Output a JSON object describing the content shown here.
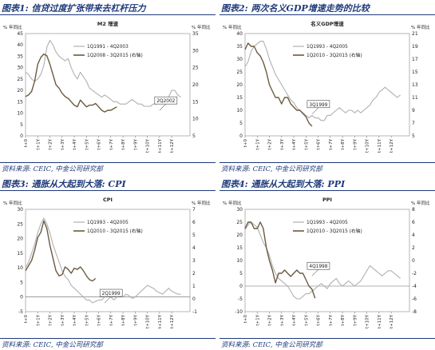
{
  "charts": [
    {
      "caption": "图表1: 信贷过度扩张带来去杠杆压力",
      "source": "资料来源: CEIC, 中金公司研究部",
      "chart_data": {
        "type": "line",
        "title": "M2 增速",
        "ylabel_left": "% 年同比",
        "ylabel_right": "% 年同比",
        "ylim_left": [
          0,
          45
        ],
        "yticks_left": [
          0,
          5,
          10,
          15,
          20,
          25,
          30,
          35,
          40,
          45
        ],
        "ylim_right": [
          5,
          35
        ],
        "yticks_right": [
          5,
          10,
          15,
          20,
          25,
          30,
          35
        ],
        "x_ticks": [
          "t+0",
          "t+1Y",
          "t+2Y",
          "t+3Y",
          "t+4Y",
          "t+5Y",
          "t+6Y",
          "t+7Y",
          "t+8Y",
          "t+9Y",
          "t+10Y",
          "t+11Y",
          "t+12Y"
        ],
        "x_range": [
          0,
          13.5
        ],
        "legend_position": "top-center",
        "annotation": {
          "label": "2Q2002",
          "x": 11.0,
          "y": 11.2
        },
        "series": [
          {
            "name": "1Q1991 - 4Q2003",
            "axis": "left",
            "color": "#b0b0b0",
            "x": [
              0,
              0.25,
              0.5,
              0.75,
              1.0,
              1.25,
              1.5,
              1.75,
              2.0,
              2.25,
              2.5,
              2.75,
              3.0,
              3.25,
              3.5,
              3.75,
              4.0,
              4.25,
              4.5,
              4.75,
              5.0,
              5.25,
              5.5,
              5.75,
              6.0,
              6.25,
              6.5,
              6.75,
              7.0,
              7.25,
              7.5,
              7.75,
              8.0,
              8.25,
              8.5,
              8.75,
              9.0,
              9.25,
              9.5,
              9.75,
              10.0,
              10.25,
              10.5,
              10.75,
              11.0,
              11.25,
              11.5,
              11.75,
              12.0,
              12.25,
              12.5,
              12.75
            ],
            "y": [
              28,
              27,
              25,
              24,
              25,
              27,
              31,
              39,
              42,
              40,
              37,
              35,
              34,
              33,
              34,
              30,
              27,
              25,
              28,
              26,
              24,
              21,
              20,
              19,
              18,
              17,
              18,
              17,
              16,
              15,
              15,
              14,
              14,
              14,
              15,
              16,
              15,
              14,
              14,
              13,
              13,
              13,
              14,
              14,
              15,
              16,
              15,
              17,
              20,
              20,
              18,
              17
            ]
          },
          {
            "name": "1Q2008 - 3Q2015 (右轴)",
            "axis": "right",
            "color": "#6b5a3f",
            "x": [
              0,
              0.25,
              0.5,
              0.75,
              1.0,
              1.25,
              1.5,
              1.75,
              2.0,
              2.25,
              2.5,
              2.75,
              3.0,
              3.25,
              3.5,
              3.75,
              4.0,
              4.25,
              4.5,
              4.75,
              5.0,
              5.25,
              5.5,
              5.75,
              6.0,
              6.25,
              6.5,
              6.75,
              7.0,
              7.25,
              7.5
            ],
            "y": [
              16.5,
              17,
              18,
              21,
              26,
              28,
              29,
              28.5,
              26,
              23,
              20,
              19,
              17.5,
              16.5,
              16,
              15,
              14,
              13.5,
              15.5,
              14.5,
              13.5,
              14,
              14,
              14.5,
              13.5,
              12.5,
              12,
              12.5,
              12.5,
              13,
              13.5
            ]
          }
        ]
      }
    },
    {
      "caption": "图表2: 两次名义GDP增速走势的比较",
      "source": "资料来源: CEIC, 中金公司研究部",
      "chart_data": {
        "type": "line",
        "title": "名义GDP增速",
        "ylabel_left": "% 年同比",
        "ylabel_right": "% 年同比",
        "ylim_left": [
          0,
          40
        ],
        "yticks_left": [
          0,
          5,
          10,
          15,
          20,
          25,
          30,
          35,
          40
        ],
        "ylim_right": [
          5,
          21
        ],
        "yticks_right": [
          5,
          7,
          9,
          11,
          13,
          15,
          17,
          19,
          21
        ],
        "x_ticks": [
          "t+0",
          "t+1Y",
          "t+2Y",
          "t+3Y",
          "t+4Y",
          "t+5Y",
          "t+6Y",
          "t+7Y",
          "t+8Y",
          "t+9Y",
          "t+10Y",
          "t+11Y",
          "t+12Y"
        ],
        "x_range": [
          0,
          13.5
        ],
        "legend_position": "top-center",
        "annotation": {
          "label": "3Q1999",
          "x": 5.5,
          "y": 8.5
        },
        "series": [
          {
            "name": "1Q1993 - 4Q2005",
            "axis": "left",
            "color": "#b0b0b0",
            "x": [
              0,
              0.25,
              0.5,
              0.75,
              1.0,
              1.25,
              1.5,
              1.75,
              2.0,
              2.25,
              2.5,
              2.75,
              3.0,
              3.25,
              3.5,
              3.75,
              4.0,
              4.25,
              4.5,
              4.75,
              5.0,
              5.25,
              5.5,
              5.75,
              6.0,
              6.25,
              6.5,
              6.75,
              7.0,
              7.25,
              7.5,
              7.75,
              8.0,
              8.25,
              8.5,
              8.75,
              9.0,
              9.25,
              9.5,
              9.75,
              10.0,
              10.25,
              10.5,
              10.75,
              11.0,
              11.25,
              11.5,
              11.75,
              12.0,
              12.25,
              12.5,
              12.75
            ],
            "y": [
              27,
              29,
              33,
              35,
              36,
              37,
              37,
              34,
              30,
              27,
              24,
              22,
              20,
              18,
              16,
              14,
              13,
              11,
              10,
              9,
              8,
              7,
              8,
              7,
              7,
              6,
              6,
              8,
              8,
              9,
              10,
              11,
              10,
              9,
              10,
              10,
              9,
              10,
              9,
              10,
              11,
              12,
              14,
              15,
              17,
              18,
              19,
              18,
              17,
              16,
              15,
              16
            ]
          },
          {
            "name": "1Q2010 - 3Q2015 (右轴)",
            "axis": "right",
            "color": "#6b5a3f",
            "x": [
              0,
              0.25,
              0.5,
              0.75,
              1.0,
              1.25,
              1.5,
              1.75,
              2.0,
              2.25,
              2.5,
              2.75,
              3.0,
              3.25,
              3.5,
              3.75,
              4.0,
              4.25,
              4.5,
              4.75,
              5.0,
              5.25,
              5.5
            ],
            "y": [
              18.5,
              19.5,
              19,
              19,
              18,
              17.5,
              16.5,
              15,
              13,
              12,
              11,
              11,
              10,
              11,
              11,
              10,
              9.5,
              9,
              9,
              8.5,
              8,
              7,
              6.5
            ]
          }
        ]
      }
    },
    {
      "caption": "图表3: 通胀从大起到大落: CPI",
      "source": "资料来源: CEIC, 中金公司研究部",
      "chart_data": {
        "type": "line",
        "title": "CPI",
        "ylabel_left": "% 年同比",
        "ylabel_right": "% 年同比",
        "ylim_left": [
          -5,
          30
        ],
        "yticks_left": [
          -5,
          0,
          5,
          10,
          15,
          20,
          25,
          30
        ],
        "ylim_right": [
          -1,
          7
        ],
        "yticks_right": [
          -1,
          0,
          1,
          2,
          3,
          4,
          5,
          6,
          7
        ],
        "x_ticks": [
          "t+0",
          "t+1Y",
          "t+2Y",
          "t+3Y",
          "t+4Y",
          "t+5Y",
          "t+6Y",
          "t+7Y",
          "t+8Y",
          "t+9Y",
          "t+10Y",
          "t+11Y",
          "t+12Y"
        ],
        "x_range": [
          0,
          13.5
        ],
        "legend_position": "top-center",
        "annotation": {
          "label": "2Q1999",
          "x": 6.5,
          "y": -2
        },
        "series": [
          {
            "name": "1Q1993 - 4Q2005",
            "axis": "left",
            "color": "#b0b0b0",
            "x": [
              0,
              0.25,
              0.5,
              0.75,
              1.0,
              1.25,
              1.5,
              1.75,
              2.0,
              2.25,
              2.5,
              2.75,
              3.0,
              3.25,
              3.5,
              3.75,
              4.0,
              4.25,
              4.5,
              4.75,
              5.0,
              5.25,
              5.5,
              5.75,
              6.0,
              6.25,
              6.5,
              6.75,
              7.0,
              7.25,
              7.5,
              7.75,
              8.0,
              8.25,
              8.5,
              8.75,
              9.0,
              9.25,
              9.5,
              9.75,
              10.0,
              10.25,
              10.5,
              10.75,
              11.0,
              11.25,
              11.5,
              11.75,
              12.0,
              12.25,
              12.5,
              12.75
            ],
            "y": [
              10,
              12,
              15,
              18,
              22,
              25,
              27,
              25,
              22,
              18,
              15,
              12,
              9,
              7,
              6,
              4,
              3,
              2,
              1,
              0,
              -1,
              -1,
              -2,
              -1.5,
              -1,
              -1,
              0,
              0.5,
              0,
              -1,
              0,
              1,
              0,
              1,
              0.5,
              -0.5,
              0,
              1,
              2,
              3,
              4,
              3.5,
              3,
              2,
              1.5,
              1,
              2,
              3,
              2,
              1.5,
              1,
              1
            ]
          },
          {
            "name": "1Q2010 - 3Q2015 (右轴)",
            "axis": "right",
            "color": "#6b5a3f",
            "x": [
              0,
              0.25,
              0.5,
              0.75,
              1.0,
              1.25,
              1.5,
              1.75,
              2.0,
              2.25,
              2.5,
              2.75,
              3.0,
              3.25,
              3.5,
              3.75,
              4.0,
              4.25,
              4.5,
              4.75,
              5.0,
              5.25,
              5.5,
              5.75
            ],
            "y": [
              2.2,
              2.6,
              3.0,
              3.8,
              4.8,
              5.2,
              6.1,
              5.5,
              4.2,
              3.2,
              2.2,
              1.8,
              1.9,
              2.5,
              2.3,
              2.0,
              2.4,
              2.3,
              2.5,
              2.2,
              1.8,
              1.5,
              1.4,
              1.6
            ]
          }
        ]
      }
    },
    {
      "caption": "图表4: 通胀从大起到大落: PPI",
      "source": "资料来源: CEIC, 中金公司研究部",
      "chart_data": {
        "type": "line",
        "title": "PPI",
        "ylabel_left": "% 年同比",
        "ylabel_right": "% 年同比",
        "ylim_left": [
          -10,
          30
        ],
        "yticks_left": [
          -10,
          -5,
          0,
          5,
          10,
          15,
          20,
          25,
          30
        ],
        "ylim_right": [
          -8,
          8
        ],
        "yticks_right": [
          -8,
          -6,
          -4,
          -2,
          0,
          2,
          4,
          6,
          8
        ],
        "x_ticks": [
          "t+0",
          "t+1Y",
          "t+2Y",
          "t+3Y",
          "t+4Y",
          "t+5Y",
          "t+6Y",
          "t+7Y",
          "t+8Y",
          "t+9Y",
          "t+10Y",
          "t+11Y",
          "t+12Y"
        ],
        "x_range": [
          0,
          13.5
        ],
        "legend_position": "top-center",
        "annotation": {
          "label": "4Q1998",
          "x": 5.5,
          "y": 4
        },
        "series": [
          {
            "name": "1Q1993 - 4Q2005",
            "axis": "left",
            "color": "#b0b0b0",
            "x": [
              0,
              0.25,
              0.5,
              0.75,
              1.0,
              1.25,
              1.5,
              1.75,
              2.0,
              2.25,
              2.5,
              2.75,
              3.0,
              3.25,
              3.5,
              3.75,
              4.0,
              4.25,
              4.5,
              4.75,
              5.0,
              5.25,
              5.5,
              5.75,
              6.0,
              6.25,
              6.5,
              6.75,
              7.0,
              7.25,
              7.5,
              7.75,
              8.0,
              8.25,
              8.5,
              8.75,
              9.0,
              9.25,
              9.5,
              9.75,
              10.0,
              10.25,
              10.5,
              10.75,
              11.0,
              11.25,
              11.5,
              11.75,
              12.0,
              12.25,
              12.5,
              12.75
            ],
            "y": [
              22,
              24,
              25,
              24,
              23,
              20,
              17,
              15,
              12,
              8,
              5,
              3,
              2,
              1,
              0,
              -2,
              -4,
              -5,
              -5,
              -4,
              -3,
              -3,
              -2,
              -1,
              0,
              1,
              0,
              -1,
              1,
              2,
              3,
              1,
              0,
              1,
              2,
              1,
              0,
              1,
              2,
              4,
              6,
              8,
              7,
              6,
              5,
              4,
              5,
              6,
              6,
              5,
              4,
              3
            ]
          },
          {
            "name": "1Q2010 - 3Q2015 (右轴)",
            "axis": "right",
            "color": "#6b5a3f",
            "x": [
              0,
              0.25,
              0.5,
              0.75,
              1.0,
              1.25,
              1.5,
              1.75,
              2.0,
              2.25,
              2.5,
              2.75,
              3.0,
              3.25,
              3.5,
              3.75,
              4.0,
              4.25,
              4.5,
              4.75,
              5.0,
              5.25,
              5.5,
              5.75
            ],
            "y": [
              5,
              6,
              6,
              5,
              5,
              6,
              5,
              2,
              0,
              -1.5,
              -3.5,
              -2,
              -2,
              -1.5,
              -2,
              -2.5,
              -2,
              -1.5,
              -2,
              -2,
              -3,
              -4,
              -4.5,
              -5.9
            ]
          }
        ]
      }
    }
  ]
}
